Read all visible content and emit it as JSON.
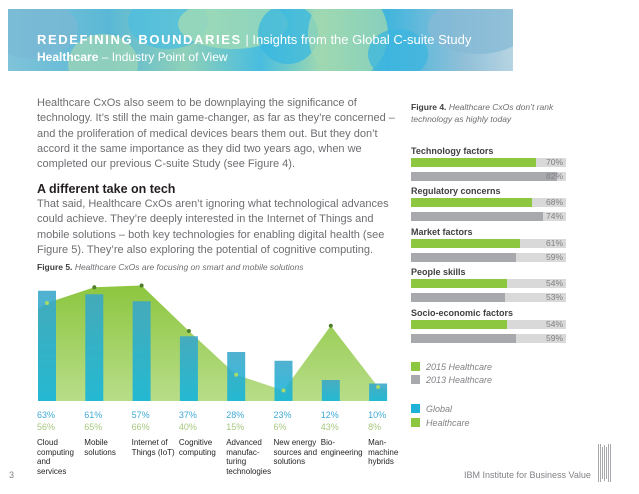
{
  "header": {
    "title_bold": "REDEFINING BOUNDARIES",
    "separator": "|",
    "title_rest": "Insights from the Global C-suite Study",
    "subtitle_bold": "Healthcare",
    "subtitle_rest": "– Industry Point of View"
  },
  "body": {
    "paragraph1": "Healthcare CxOs also seem to be downplaying the significance of technology. It’s still the main game-changer, as far as they’re concerned – and the proliferation of medical devices bears them out. But they don’t accord it the same importance as they did two years ago, when we completed our previous C-suite Study (see Figure 4).",
    "heading": "A different take on tech",
    "paragraph2": "That said, Healthcare CxOs aren’t ignoring what technological advances could achieve. They’re deeply interested in the Internet of Things and mobile solutions – both key technologies for enabling digital health (see Figure 5). They’re also exploring the potential of cognitive computing."
  },
  "figure5": {
    "label": "Figure 5.",
    "caption": "Healthcare CxOs are focusing on smart and mobile solutions"
  },
  "figure4": {
    "label": "Figure 4.",
    "caption": "Healthcare CxOs don’t rank technology as highly today"
  },
  "chart_data": [
    {
      "type": "bar",
      "title": "Healthcare CxOs are focusing on smart and mobile solutions",
      "categories": [
        "Cloud computing and services",
        "Mobile solutions",
        "Internet of Things (IoT)",
        "Cognitive computing",
        "Advanced manufac-turing technologies",
        "New energy sources and solutions",
        "Bio-engineering",
        "Man-machine hybrids"
      ],
      "category_lines": [
        [
          "Cloud",
          "computing",
          "and",
          "services"
        ],
        [
          "Mobile",
          "solutions"
        ],
        [
          "Internet of",
          "Things (IoT)"
        ],
        [
          "Cognitive",
          "computing"
        ],
        [
          "Advanced",
          "manufac-",
          "turing",
          "technologies"
        ],
        [
          "New energy",
          "sources and",
          "solutions"
        ],
        [
          "Bio-",
          "engineering"
        ],
        [
          "Man-machine",
          "hybrids"
        ]
      ],
      "series": [
        {
          "name": "Global",
          "kind": "bar",
          "color": "#1fb1d8",
          "values": [
            63,
            61,
            57,
            37,
            28,
            23,
            12,
            10
          ]
        },
        {
          "name": "Healthcare",
          "kind": "area",
          "color": "#8dc63f",
          "values": [
            56,
            65,
            66,
            40,
            15,
            6,
            43,
            8
          ]
        }
      ],
      "value_labels": {
        "global": [
          "63%",
          "61%",
          "57%",
          "37%",
          "28%",
          "23%",
          "12%",
          "10%"
        ],
        "healthcare": [
          "56%",
          "65%",
          "66%",
          "40%",
          "15%",
          "6%",
          "43%",
          "8%"
        ]
      },
      "legend": [
        {
          "label": "Global",
          "color": "#1fb1d8"
        },
        {
          "label": "Healthcare",
          "color": "#8dc63f"
        }
      ],
      "ylim": [
        0,
        70
      ],
      "grid": false
    },
    {
      "type": "bar",
      "orientation": "horizontal",
      "title": "Healthcare CxOs don’t rank technology as highly today",
      "categories": [
        "Technology factors",
        "Regulatory concerns",
        "Market factors",
        "People skills",
        "Socio-economic factors"
      ],
      "series": [
        {
          "name": "2015 Healthcare",
          "color": "#8dc63f",
          "values": [
            70,
            68,
            61,
            54,
            54
          ],
          "labels": [
            "70%",
            "68%",
            "61%",
            "54%",
            "54%"
          ]
        },
        {
          "name": "2013 Healthcare",
          "color": "#a7a9ac",
          "values": [
            82,
            74,
            59,
            53,
            59
          ],
          "labels": [
            "82%",
            "74%",
            "59%",
            "53%",
            "59%"
          ]
        }
      ],
      "legend": [
        {
          "label": "2015 Healthcare",
          "color": "#8dc63f"
        },
        {
          "label": "2013 Healthcare",
          "color": "#a7a9ac"
        }
      ],
      "xlim": [
        0,
        100
      ]
    }
  ],
  "footer": {
    "page_number": "3",
    "publisher": "IBM Institute for Business Value",
    "logo_icon": "ibm-logo-icon"
  }
}
